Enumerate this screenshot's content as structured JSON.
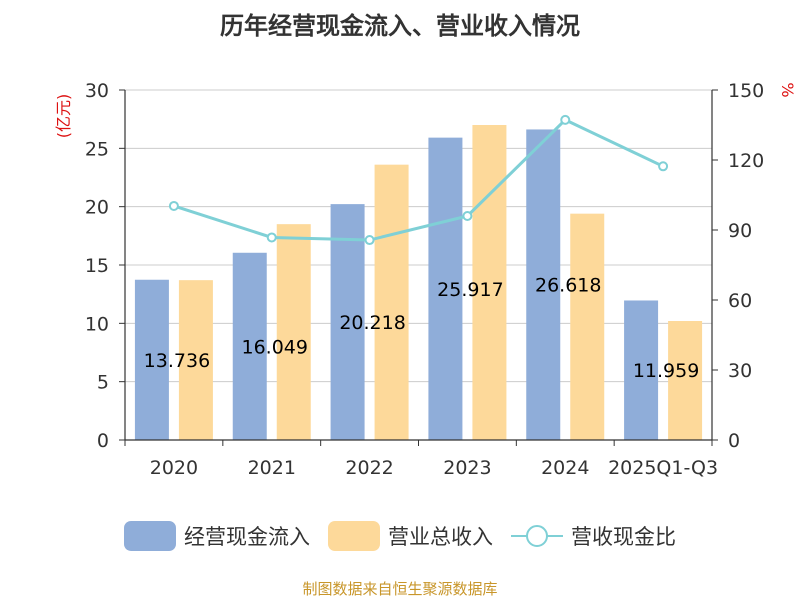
{
  "chart_data": {
    "type": "bar",
    "title": "历年经营现金流入、营业收入情况",
    "categories": [
      "2020",
      "2021",
      "2022",
      "2023",
      "2024",
      "2025Q1-Q3"
    ],
    "y_left": {
      "unit_label": "(亿元)",
      "ticks": [
        "0",
        "5",
        "10",
        "15",
        "20",
        "25",
        "30"
      ],
      "ylim": [
        0,
        30
      ]
    },
    "y_right": {
      "unit_label": "%",
      "ticks": [
        "0",
        "30",
        "60",
        "90",
        "120",
        "150"
      ],
      "ylim": [
        0,
        150
      ]
    },
    "series": [
      {
        "name": "经营现金流入",
        "kind": "bar",
        "color": "#8fadd9",
        "values": [
          13.736,
          16.049,
          20.218,
          25.917,
          26.618,
          11.959
        ],
        "labels": [
          "13.736",
          "16.049",
          "20.218",
          "25.917",
          "26.618",
          "11.959"
        ]
      },
      {
        "name": "营业总收入",
        "kind": "bar",
        "color": "#fdd99a",
        "values": [
          13.7,
          18.5,
          23.6,
          27.0,
          19.4,
          10.2
        ]
      },
      {
        "name": "营收现金比",
        "kind": "line",
        "color": "#7fd0d6",
        "axis": "right",
        "values": [
          100.3,
          86.8,
          85.7,
          96.0,
          137.2,
          117.3
        ]
      }
    ],
    "grid": true,
    "legend_position": "bottom"
  },
  "source": "制图数据来自恒生聚源数据库"
}
